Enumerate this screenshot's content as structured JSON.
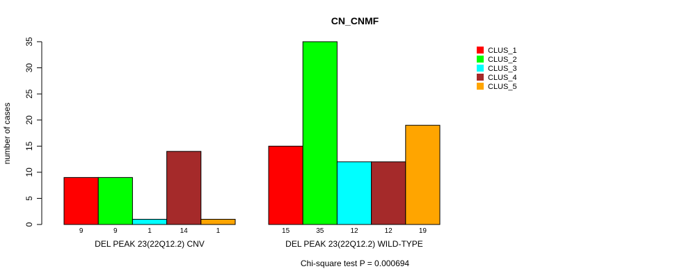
{
  "chart_data": {
    "type": "bar",
    "title": "CN_CNMF",
    "ylabel": "number of cases",
    "ylim": [
      0,
      35
    ],
    "yticks": [
      0,
      5,
      10,
      15,
      20,
      25,
      30,
      35
    ],
    "groups": [
      "DEL PEAK 23(22Q12.2) CNV",
      "DEL PEAK 23(22Q12.2) WILD-TYPE"
    ],
    "series": [
      {
        "name": "CLUS_1",
        "color": "#ff0000",
        "values": [
          9,
          15
        ]
      },
      {
        "name": "CLUS_2",
        "color": "#00ff00",
        "values": [
          9,
          35
        ]
      },
      {
        "name": "CLUS_3",
        "color": "#00ffff",
        "values": [
          1,
          12
        ]
      },
      {
        "name": "CLUS_4",
        "color": "#a52a2a",
        "values": [
          14,
          12
        ]
      },
      {
        "name": "CLUS_5",
        "color": "#ffa500",
        "values": [
          1,
          19
        ]
      }
    ],
    "legend_position": "top-right",
    "footnote": "Chi-square test P = 0.000694"
  }
}
